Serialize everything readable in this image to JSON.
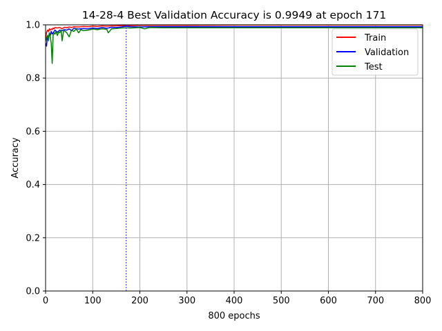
{
  "chart_data": {
    "type": "line",
    "title": "14-28-4 Best Validation Accuracy is 0.9949 at epoch 171",
    "xlabel": "800 epochs",
    "ylabel": "Accuracy",
    "xlim": [
      0,
      800
    ],
    "ylim": [
      0.0,
      1.0
    ],
    "xticks": [
      0,
      100,
      200,
      300,
      400,
      500,
      600,
      700,
      800
    ],
    "yticks": [
      0.0,
      0.2,
      0.4,
      0.6,
      0.8,
      1.0
    ],
    "xtick_labels": [
      "0",
      "100",
      "200",
      "300",
      "400",
      "500",
      "600",
      "700",
      "800"
    ],
    "ytick_labels": [
      "0.0",
      "0.2",
      "0.4",
      "0.6",
      "0.8",
      "1.0"
    ],
    "grid": true,
    "legend_position": "top-right",
    "best_epoch_marker": 171,
    "series": [
      {
        "name": "Train",
        "color": "#ff0000",
        "x": [
          0,
          2,
          4,
          6,
          8,
          10,
          12,
          14,
          16,
          18,
          20,
          25,
          30,
          35,
          40,
          45,
          50,
          55,
          60,
          70,
          80,
          90,
          100,
          110,
          120,
          130,
          140,
          150,
          160,
          171,
          180,
          200,
          220,
          250,
          300,
          400,
          500,
          600,
          700,
          800
        ],
        "values": [
          0.95,
          0.97,
          0.98,
          0.975,
          0.985,
          0.98,
          0.985,
          0.982,
          0.988,
          0.985,
          0.99,
          0.988,
          0.99,
          0.985,
          0.991,
          0.989,
          0.992,
          0.99,
          0.993,
          0.992,
          0.994,
          0.993,
          0.995,
          0.994,
          0.996,
          0.995,
          0.996,
          0.996,
          0.997,
          0.997,
          0.997,
          0.998,
          0.998,
          0.998,
          0.998,
          0.999,
          0.999,
          0.999,
          0.999,
          0.999
        ]
      },
      {
        "name": "Validation",
        "color": "#0000ff",
        "x": [
          0,
          2,
          4,
          6,
          8,
          10,
          12,
          14,
          16,
          18,
          20,
          25,
          30,
          35,
          40,
          45,
          50,
          55,
          60,
          70,
          80,
          90,
          100,
          110,
          120,
          130,
          140,
          150,
          160,
          171,
          180,
          200,
          220,
          250,
          300,
          400,
          500,
          600,
          700,
          800
        ],
        "values": [
          0.93,
          0.92,
          0.96,
          0.95,
          0.97,
          0.96,
          0.975,
          0.965,
          0.97,
          0.975,
          0.98,
          0.972,
          0.98,
          0.978,
          0.982,
          0.98,
          0.985,
          0.978,
          0.987,
          0.984,
          0.986,
          0.985,
          0.988,
          0.986,
          0.99,
          0.987,
          0.991,
          0.99,
          0.992,
          0.9949,
          0.993,
          0.992,
          0.993,
          0.993,
          0.993,
          0.993,
          0.993,
          0.993,
          0.993,
          0.993
        ]
      },
      {
        "name": "Test",
        "color": "#008000",
        "x": [
          0,
          2,
          4,
          6,
          8,
          10,
          12,
          14,
          16,
          18,
          20,
          22,
          25,
          28,
          30,
          33,
          35,
          38,
          40,
          45,
          50,
          55,
          60,
          65,
          70,
          75,
          80,
          90,
          100,
          110,
          120,
          130,
          133,
          140,
          150,
          160,
          171,
          180,
          200,
          210,
          220,
          250,
          300,
          400,
          500,
          600,
          700,
          800
        ],
        "values": [
          0.94,
          0.95,
          0.96,
          0.94,
          0.97,
          0.955,
          0.93,
          0.855,
          0.96,
          0.97,
          0.965,
          0.975,
          0.96,
          0.975,
          0.97,
          0.98,
          0.94,
          0.975,
          0.978,
          0.97,
          0.955,
          0.98,
          0.975,
          0.985,
          0.97,
          0.982,
          0.978,
          0.98,
          0.984,
          0.982,
          0.985,
          0.983,
          0.97,
          0.985,
          0.986,
          0.988,
          0.989,
          0.988,
          0.99,
          0.985,
          0.99,
          0.989,
          0.989,
          0.989,
          0.989,
          0.989,
          0.989,
          0.989
        ]
      }
    ]
  }
}
